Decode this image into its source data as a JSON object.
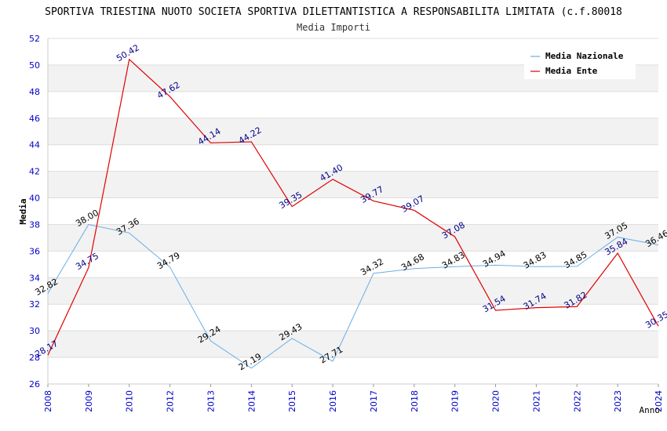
{
  "chart_data": {
    "type": "line",
    "title": "SPORTIVA TRIESTINA NUOTO SOCIETA SPORTIVA DILETTANTISTICA A RESPONSABILITA LIMITATA (c.f.80018",
    "subtitle": "Media Importi",
    "xlabel": "Anno",
    "ylabel": "Media",
    "ylim": [
      26,
      52
    ],
    "yticks": [
      "26",
      "28",
      "30",
      "32",
      "34",
      "36",
      "38",
      "40",
      "42",
      "44",
      "46",
      "48",
      "50",
      "52"
    ],
    "categories": [
      "2008",
      "2009",
      "2010",
      "2012",
      "2013",
      "2014",
      "2015",
      "2016",
      "2017",
      "2018",
      "2019",
      "2020",
      "2021",
      "2022",
      "2023",
      "2024"
    ],
    "legend_position": "top-right",
    "series": [
      {
        "name": "Media Nazionale",
        "color": "#6aaee6",
        "label_color": "#000000",
        "values": [
          32.82,
          38.0,
          37.36,
          34.79,
          29.24,
          27.19,
          29.43,
          27.71,
          34.32,
          34.68,
          34.83,
          34.94,
          34.83,
          34.85,
          37.05,
          36.46
        ],
        "labels": [
          "32.82",
          "38.00",
          "37.36",
          "34.79",
          "29.24",
          "27.19",
          "29.43",
          "27.71",
          "34.32",
          "34.68",
          "34.83",
          "34.94",
          "34.83",
          "34.85",
          "37.05",
          "36.46"
        ]
      },
      {
        "name": "Media Ente",
        "color": "#e00000",
        "label_color": "#00008b",
        "values": [
          28.17,
          34.75,
          50.42,
          47.62,
          44.14,
          44.22,
          39.35,
          41.4,
          39.77,
          39.07,
          37.08,
          31.54,
          31.74,
          31.82,
          35.84,
          30.35
        ],
        "labels": [
          "28.17",
          "34.75",
          "50.42",
          "47.62",
          "44.14",
          "44.22",
          "39.35",
          "41.40",
          "39.77",
          "39.07",
          "37.08",
          "31.54",
          "31.74",
          "31.82",
          "35.84",
          "30.35"
        ]
      }
    ]
  }
}
